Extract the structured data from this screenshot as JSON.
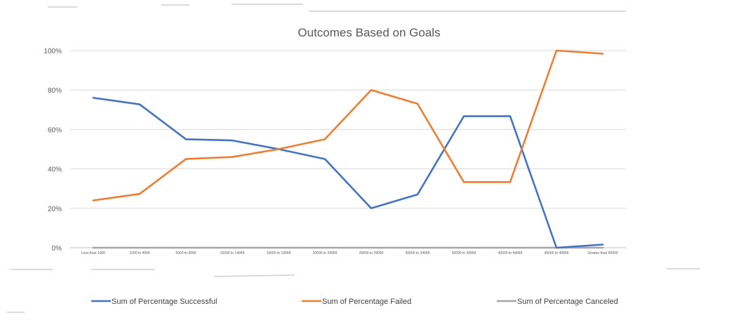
{
  "chart_data": {
    "type": "line",
    "title": "Outcomes Based on Goals",
    "xlabel": "",
    "ylabel": "",
    "categories": [
      "Less than 1000",
      "1000 to 4999",
      "5000 to 9999",
      "10000 to 14999",
      "15000 to 19999",
      "20000 to 24999",
      "25000 to 29999",
      "30000 to 34999",
      "35000 to 39999",
      "40000 to 44999",
      "45000 to 49999",
      "Greater than 50000"
    ],
    "ylim": [
      0,
      100
    ],
    "yticks": [
      0,
      20,
      40,
      60,
      80,
      100
    ],
    "ytick_labels": [
      "0%",
      "20%",
      "40%",
      "60%",
      "80%",
      "100%"
    ],
    "grid": true,
    "legend_position": "bottom",
    "series": [
      {
        "name": "Sum of Percentage Successful",
        "color": "#4472C4",
        "values": [
          76,
          72.7,
          55,
          54.4,
          50,
          45,
          20,
          27,
          66.7,
          66.7,
          0,
          1.6
        ]
      },
      {
        "name": "Sum of Percentage Failed",
        "color": "#ED7D31",
        "values": [
          24,
          27.3,
          45,
          46,
          50,
          55,
          80,
          73,
          33.3,
          33.3,
          100,
          98.4
        ]
      },
      {
        "name": "Sum of Percentage Canceled",
        "color": "#A5A5A5",
        "values": [
          0,
          0,
          0,
          0,
          0,
          0,
          0,
          0,
          0,
          0,
          0,
          0
        ]
      }
    ]
  }
}
